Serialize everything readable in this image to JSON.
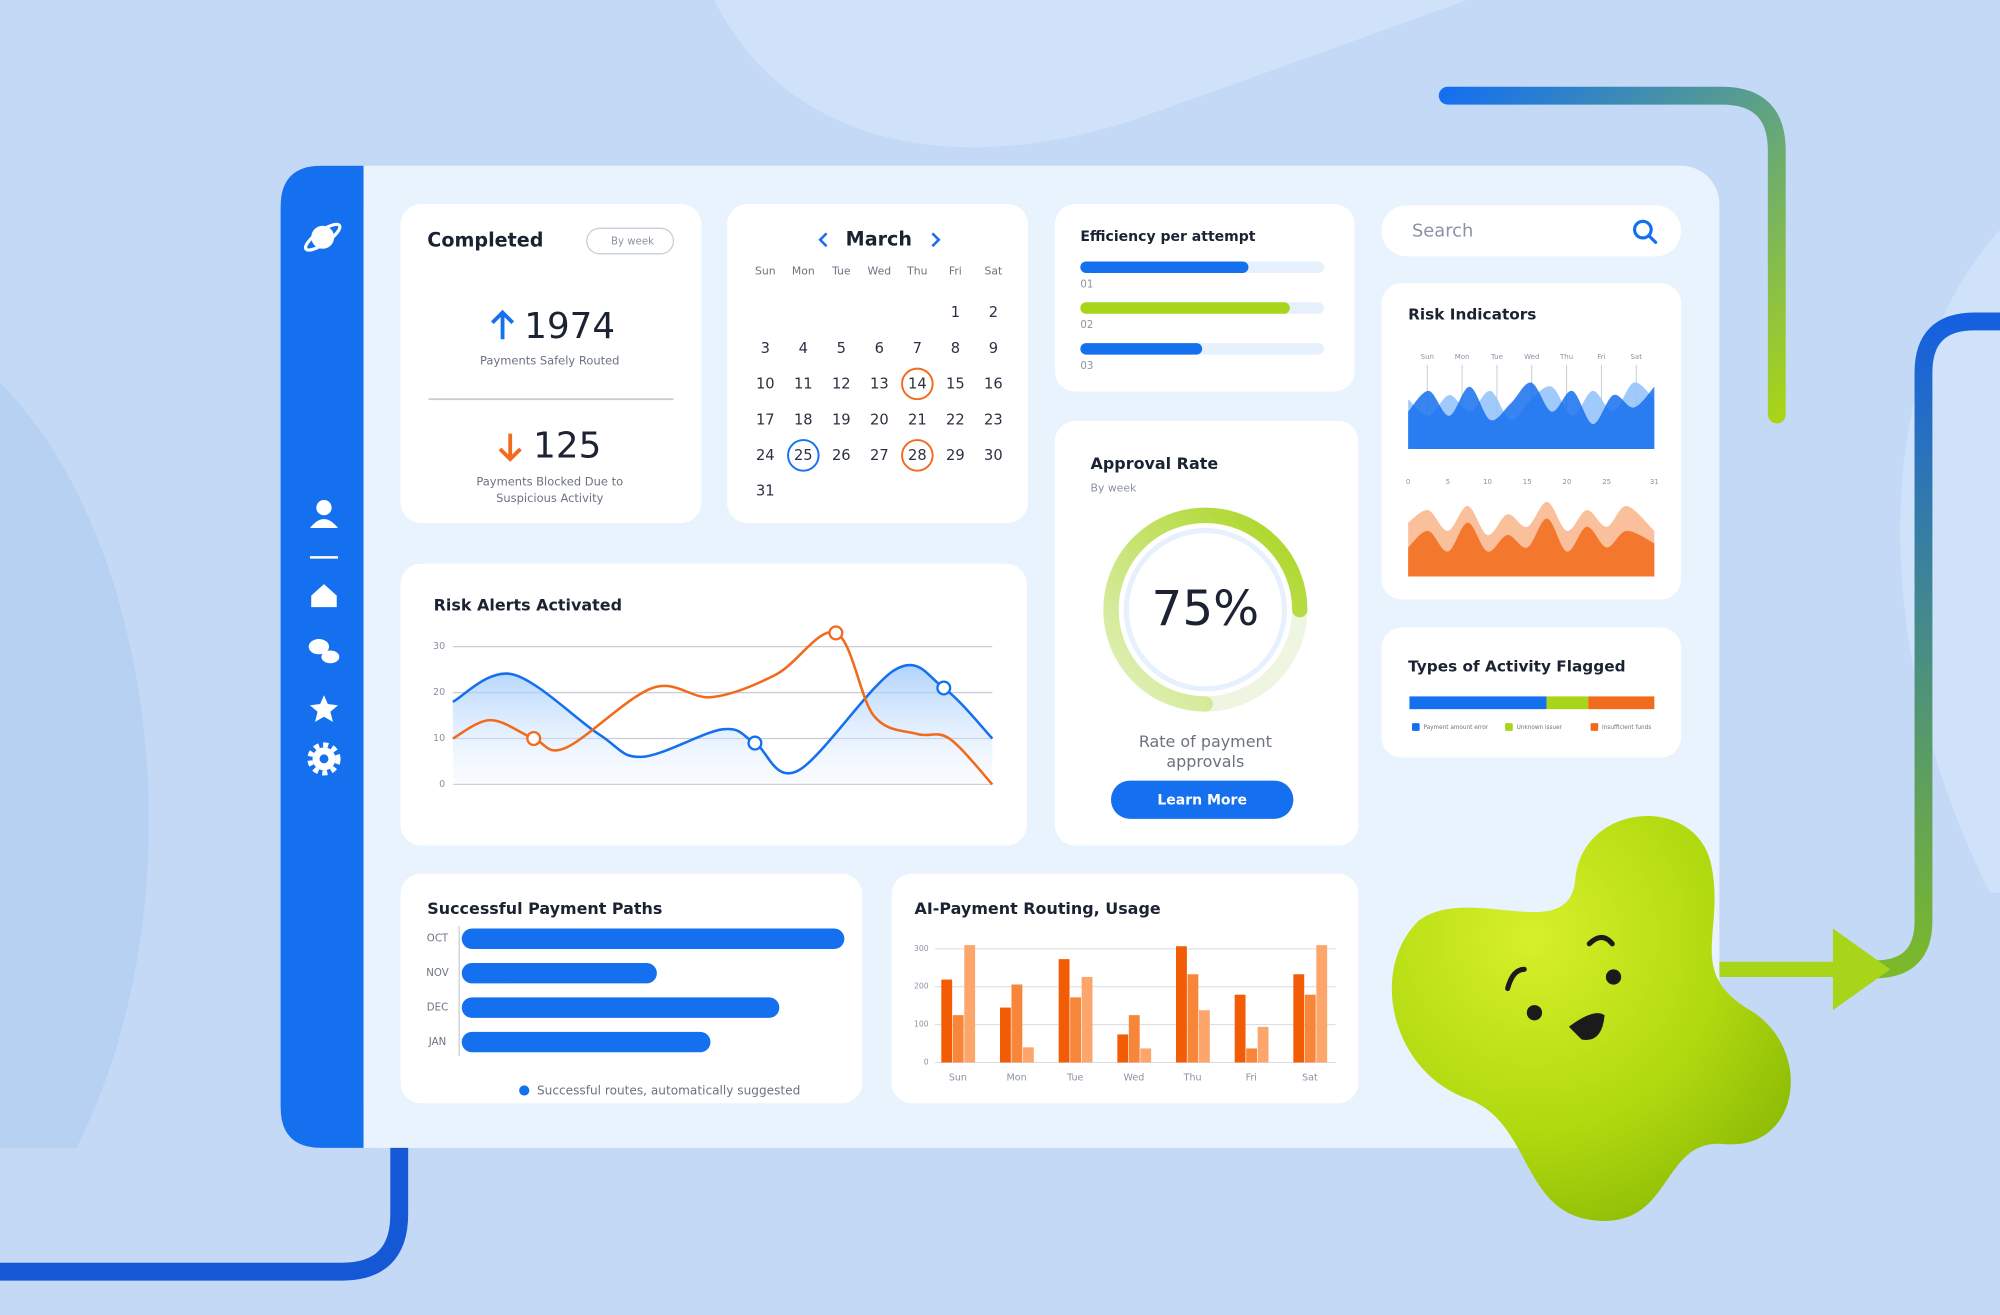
{
  "completed": {
    "title": "Completed",
    "filter": "By week",
    "routed": {
      "value": 1974,
      "label": "Payments Safely Routed"
    },
    "blocked": {
      "value": 125,
      "label": [
        "Payments Blocked Due to",
        "Suspicious Activity"
      ]
    }
  },
  "calendar": {
    "month": "March",
    "weekdays": [
      "Sun",
      "Mon",
      "Tue",
      "Wed",
      "Thu",
      "Fri",
      "Sat"
    ],
    "weeks": [
      [
        null,
        null,
        null,
        null,
        null,
        1,
        2
      ],
      [
        3,
        4,
        5,
        6,
        7,
        8,
        9
      ],
      [
        10,
        11,
        12,
        13,
        14,
        15,
        16
      ],
      [
        17,
        18,
        19,
        20,
        21,
        22,
        23
      ],
      [
        24,
        25,
        26,
        27,
        28,
        29,
        30
      ],
      [
        31,
        null,
        null,
        null,
        null,
        null,
        null
      ]
    ],
    "highlights": [
      {
        "day": 14,
        "color": "#f26a1b"
      },
      {
        "day": 25,
        "color": "#1570ef"
      },
      {
        "day": 28,
        "color": "#f26a1b"
      }
    ]
  },
  "risk_alerts": {
    "type": "line",
    "title": "Risk Alerts Activated",
    "xlim": [
      0,
      100
    ],
    "ylim": [
      0,
      35
    ],
    "yticks": [
      0,
      10,
      20,
      30
    ],
    "grid": true,
    "series": [
      {
        "color": "#1570ef",
        "x": [
          0,
          11,
          27,
          35,
          50,
          56,
          64,
          82,
          91,
          100
        ],
        "values": [
          18,
          24,
          11,
          6,
          12,
          9,
          3,
          25,
          21,
          10
        ],
        "markers": [
          5,
          8
        ]
      },
      {
        "color": "#f26a1b",
        "x": [
          0,
          7,
          15,
          21,
          37,
          48,
          60,
          71,
          78,
          86,
          92,
          100
        ],
        "values": [
          10,
          14,
          10,
          8,
          21,
          19,
          24,
          33,
          15,
          11,
          10,
          0
        ],
        "markers": [
          2,
          7
        ]
      }
    ]
  },
  "efficiency": {
    "title": "Efficiency per attempt",
    "xlim": [
      0,
      100
    ],
    "bars": [
      {
        "label": "01",
        "value": 69,
        "color": "#1570ef"
      },
      {
        "label": "02",
        "value": 86,
        "color": "#a8d41a"
      },
      {
        "label": "03",
        "value": 50,
        "color": "#1570ef"
      }
    ]
  },
  "search": {
    "placeholder": "Search"
  },
  "risk_indicators": {
    "title": "Risk Indicators",
    "top": {
      "labels": [
        "Sun",
        "Mon",
        "Tue",
        "Wed",
        "Thu",
        "Fri",
        "Sat"
      ],
      "xlim": [
        0,
        6
      ],
      "ylim": [
        0,
        100
      ],
      "series": [
        {
          "color": "#8fc1fb",
          "x": [
            0,
            0.5,
            1,
            1.5,
            2,
            2.5,
            3,
            3.5,
            4,
            4.5,
            5,
            5.5,
            6
          ],
          "values": [
            60,
            40,
            65,
            45,
            70,
            35,
            60,
            75,
            40,
            70,
            45,
            80,
            60
          ]
        },
        {
          "color": "#1570ef",
          "x": [
            0,
            0.5,
            1,
            1.5,
            2,
            2.5,
            3,
            3.5,
            4,
            4.5,
            5,
            5.5,
            6
          ],
          "values": [
            45,
            70,
            40,
            75,
            35,
            55,
            80,
            45,
            70,
            30,
            65,
            50,
            75
          ]
        }
      ]
    },
    "bottom": {
      "xlim": [
        0,
        31
      ],
      "xticks": [
        0,
        5,
        10,
        15,
        20,
        25,
        31
      ],
      "ylim": [
        0,
        100
      ],
      "series": [
        {
          "color": "#f9b48a",
          "x": [
            0,
            2.5,
            5,
            7.5,
            10,
            12.5,
            15,
            17.5,
            20,
            22.5,
            25,
            27.5,
            31
          ],
          "values": [
            65,
            80,
            55,
            85,
            50,
            75,
            60,
            90,
            55,
            80,
            60,
            85,
            55
          ]
        },
        {
          "color": "#f26a1b",
          "x": [
            0,
            2.5,
            5,
            7.5,
            10,
            12.5,
            15,
            17.5,
            20,
            22.5,
            25,
            27.5,
            31
          ],
          "values": [
            35,
            55,
            30,
            65,
            30,
            50,
            35,
            70,
            30,
            60,
            35,
            55,
            40
          ]
        }
      ]
    }
  },
  "approval": {
    "title": "Approval Rate",
    "subtitle": "By week",
    "value": 75,
    "value_label": "75%",
    "caption": [
      "Rate of payment",
      "approvals"
    ],
    "button": "Learn More"
  },
  "types_flagged": {
    "title": "Types of Activity Flagged",
    "series": [
      {
        "name": "Payment amount error",
        "color": "#1570ef",
        "value": 56
      },
      {
        "name": "Unknown issuer",
        "color": "#a8d41a",
        "value": 17
      },
      {
        "name": "Insufficient funds",
        "color": "#f26a1b",
        "value": 27
      }
    ]
  },
  "payment_paths": {
    "type": "bar",
    "title": "Successful Payment Paths",
    "categories": [
      "OCT",
      "NOV",
      "DEC",
      "JAN"
    ],
    "values": [
      100,
      51,
      83,
      65
    ],
    "xlim": [
      0,
      100
    ],
    "color": "#1570ef",
    "legend": "Successful routes, automatically suggested"
  },
  "ai_routing": {
    "type": "bar",
    "title": "AI-Payment Routing, Usage",
    "categories": [
      "Sun",
      "Mon",
      "Tue",
      "Wed",
      "Thu",
      "Fri",
      "Sat"
    ],
    "ylim": [
      0,
      310
    ],
    "yticks": [
      0,
      100,
      200,
      300
    ],
    "grid": true,
    "series": [
      {
        "color": "#f25c05",
        "values": [
          219,
          145,
          273,
          74,
          307,
          179,
          233
        ]
      },
      {
        "color": "#f7853a",
        "values": [
          125,
          206,
          172,
          125,
          233,
          37,
          179
        ]
      },
      {
        "color": "#fca66c",
        "values": [
          310,
          40,
          226,
          37,
          138,
          94,
          310
        ]
      }
    ]
  }
}
